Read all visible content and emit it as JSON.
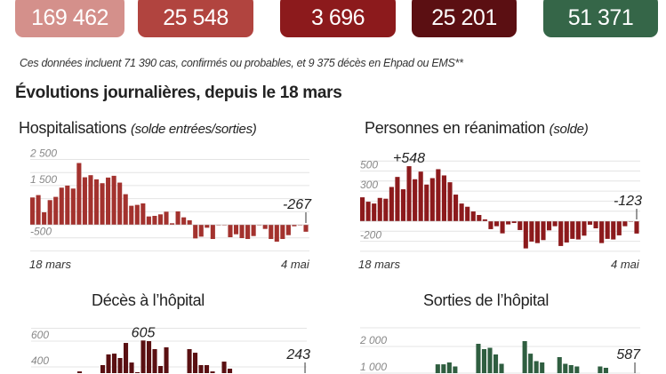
{
  "kpis": [
    {
      "value": "169 462",
      "color": "#d4908b"
    },
    {
      "value": "25 548",
      "color": "#b1443f"
    },
    {
      "value": "3 696",
      "color": "#8c1a1c"
    },
    {
      "value": "25 201",
      "color": "#5b0f12"
    },
    {
      "value": "51 371",
      "color": "#356648"
    }
  ],
  "note": "Ces données incluent 71 390 cas, confirmés ou probables, et 9 375 décès en Ehpad ou EMS**",
  "section_title": "Évolutions journalières, depuis le 18 mars",
  "chart_data": [
    {
      "type": "bar",
      "title": "Hospitalisations",
      "subtitle": "(solde entrées/sorties)",
      "x_start": "18 mars",
      "x_end": "4 mai",
      "ylim": [
        -1000,
        2700
      ],
      "tick_labels": [
        "2 500",
        "1 500",
        "-500"
      ],
      "tick_values": [
        2500,
        1500,
        -500
      ],
      "gridlines": [
        2500,
        2000,
        1500,
        1000,
        500,
        -500,
        -1000
      ],
      "annotation": {
        "text": "-267",
        "index": 47
      },
      "color": "#a3322e",
      "values": [
        1045,
        1136,
        477,
        943,
        1068,
        1420,
        1500,
        1386,
        2364,
        1818,
        1898,
        1739,
        1591,
        1807,
        1875,
        1614,
        1170,
        727,
        761,
        818,
        318,
        341,
        398,
        500,
        57,
        511,
        284,
        170,
        -523,
        -455,
        -114,
        -545,
        -20,
        -10,
        -477,
        -364,
        -511,
        -545,
        -432,
        -15,
        -159,
        -545,
        -648,
        -545,
        -398,
        -57,
        -10,
        -267
      ]
    },
    {
      "type": "bar",
      "title": "Personnes en réanimation",
      "subtitle": "(solde)",
      "x_start": "18 mars",
      "x_end": "4 mai",
      "ylim": [
        -320,
        620
      ],
      "tick_labels": [
        "500",
        "300",
        "-200"
      ],
      "tick_values": [
        500,
        300,
        -200
      ],
      "gridlines": [
        600,
        500,
        400,
        300,
        200,
        100,
        -100,
        -200,
        -300
      ],
      "annotation": {
        "text": "+548",
        "index": 8,
        "text2": "-123",
        "index2": 47
      },
      "color": "#8c1a1c",
      "values": [
        238,
        194,
        176,
        232,
        224,
        341,
        441,
        318,
        548,
        418,
        494,
        365,
        429,
        518,
        456,
        388,
        265,
        176,
        144,
        97,
        62,
        18,
        -79,
        -50,
        -121,
        -32,
        -18,
        -88,
        -271,
        -203,
        -218,
        -188,
        -91,
        -50,
        -247,
        -212,
        -176,
        -182,
        -144,
        -35,
        -71,
        -218,
        -176,
        -182,
        -141,
        -50,
        -3,
        -123
      ]
    },
    {
      "type": "bar",
      "title": "Décès à l’hôpital",
      "x_start": "18 mars",
      "x_end": "4 mai",
      "tick_labels": [
        "600",
        "400"
      ],
      "tick_values": [
        600,
        400
      ],
      "gridlines": [
        700,
        600,
        400
      ],
      "annotation": {
        "text": "605",
        "index": 19,
        "text2": "243",
        "index2": 47
      },
      "color": "#5a1012",
      "values": [
        95,
        110,
        112,
        180,
        230,
        240,
        290,
        320,
        365,
        300,
        290,
        320,
        414,
        497,
        503,
        469,
        586,
        434,
        359,
        605,
        600,
        538,
        407,
        552,
        330,
        310,
        280,
        538,
        510,
        414,
        414,
        365,
        300,
        441,
        386,
        250,
        300,
        330,
        220,
        230,
        300,
        180,
        240,
        250,
        130,
        160,
        190,
        243
      ]
    },
    {
      "type": "bar",
      "title": "Sorties de l’hôpital",
      "x_start": "18 mars",
      "x_end": "4 mai",
      "tick_labels": [
        "2 000",
        "1 000"
      ],
      "tick_values": [
        2000,
        1000
      ],
      "gridlines": [
        2700,
        2000,
        1000
      ],
      "annotation": {
        "text": "587",
        "index": 47
      },
      "color": "#2f5e40",
      "values": [
        300,
        400,
        500,
        600,
        700,
        650,
        900,
        800,
        950,
        700,
        900,
        850,
        980,
        1330,
        1330,
        1400,
        1250,
        700,
        600,
        900,
        2100,
        1900,
        1950,
        1700,
        1350,
        800,
        700,
        950,
        2200,
        1730,
        1450,
        1400,
        900,
        700,
        1600,
        1350,
        1300,
        1250,
        800,
        500,
        900,
        1250,
        1200,
        700,
        600,
        500,
        300,
        587
      ]
    }
  ]
}
